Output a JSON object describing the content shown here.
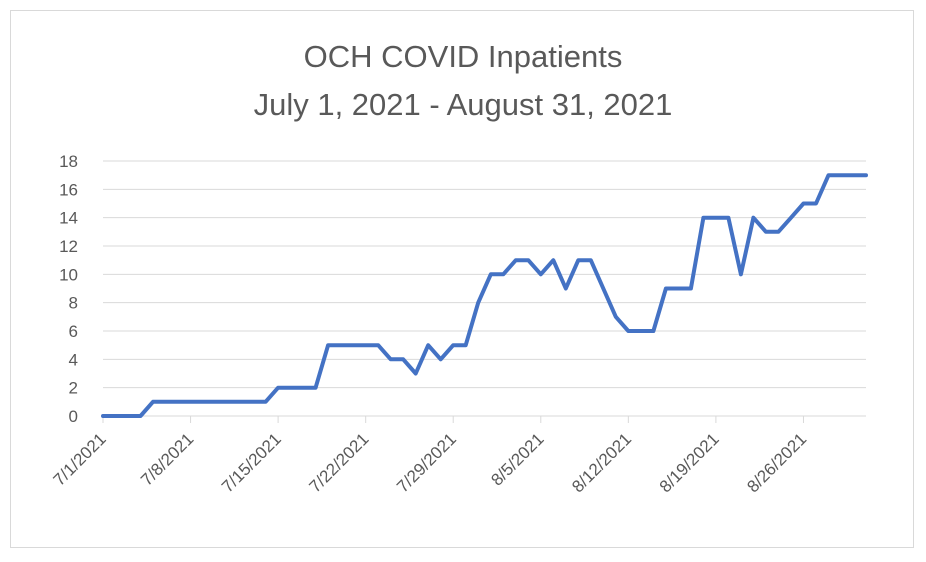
{
  "chart_data": {
    "type": "line",
    "title": "OCH COVID Inpatients",
    "subtitle": "July 1, 2021 - August 31, 2021",
    "xlabel": "",
    "ylabel": "",
    "ylim": [
      0,
      18
    ],
    "yticks": [
      "0",
      "2",
      "4",
      "6",
      "8",
      "10",
      "12",
      "14",
      "16",
      "18"
    ],
    "xtick_labels": [
      "7/1/2021",
      "7/8/2021",
      "7/15/2021",
      "7/22/2021",
      "7/29/2021",
      "8/5/2021",
      "8/12/2021",
      "8/19/2021",
      "8/26/2021"
    ],
    "grid": true,
    "legend": "none",
    "line_color": "#4472C4",
    "x": [
      "7/1/2021",
      "7/2/2021",
      "7/3/2021",
      "7/4/2021",
      "7/5/2021",
      "7/6/2021",
      "7/7/2021",
      "7/8/2021",
      "7/9/2021",
      "7/10/2021",
      "7/11/2021",
      "7/12/2021",
      "7/13/2021",
      "7/14/2021",
      "7/15/2021",
      "7/16/2021",
      "7/17/2021",
      "7/18/2021",
      "7/19/2021",
      "7/20/2021",
      "7/21/2021",
      "7/22/2021",
      "7/23/2021",
      "7/24/2021",
      "7/25/2021",
      "7/26/2021",
      "7/27/2021",
      "7/28/2021",
      "7/29/2021",
      "7/30/2021",
      "7/31/2021",
      "8/1/2021",
      "8/2/2021",
      "8/3/2021",
      "8/4/2021",
      "8/5/2021",
      "8/6/2021",
      "8/7/2021",
      "8/8/2021",
      "8/9/2021",
      "8/10/2021",
      "8/11/2021",
      "8/12/2021",
      "8/13/2021",
      "8/14/2021",
      "8/15/2021",
      "8/16/2021",
      "8/17/2021",
      "8/18/2021",
      "8/19/2021",
      "8/20/2021",
      "8/21/2021",
      "8/22/2021",
      "8/23/2021",
      "8/24/2021",
      "8/25/2021",
      "8/26/2021",
      "8/27/2021",
      "8/28/2021",
      "8/29/2021",
      "8/30/2021",
      "8/31/2021"
    ],
    "series": [
      {
        "values": [
          0,
          0,
          0,
          0,
          1,
          1,
          1,
          1,
          1,
          1,
          1,
          1,
          1,
          1,
          2,
          2,
          2,
          2,
          5,
          5,
          5,
          5,
          5,
          4,
          4,
          3,
          5,
          4,
          5,
          5,
          8,
          10,
          10,
          11,
          11,
          10,
          11,
          9,
          11,
          11,
          9,
          7,
          6,
          6,
          6,
          9,
          9,
          9,
          14,
          14,
          14,
          10,
          14,
          13,
          13,
          14,
          15,
          15,
          17,
          17,
          17,
          17
        ]
      }
    ]
  }
}
